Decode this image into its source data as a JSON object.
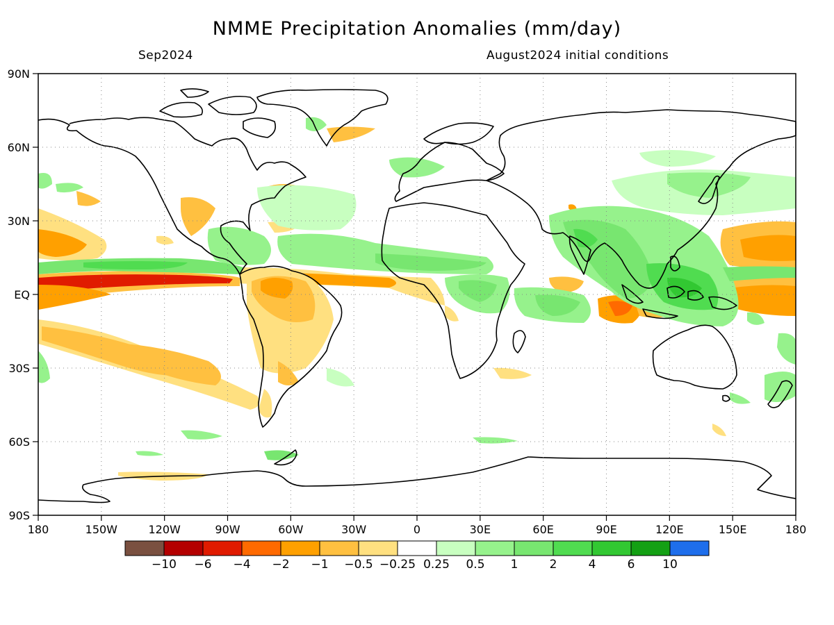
{
  "title": "NMME Precipitation Anomalies (mm/day)",
  "subtitle_left": "Sep2024",
  "subtitle_right": "August2024 initial conditions",
  "lat_labels": [
    "90N",
    "60N",
    "30N",
    "EQ",
    "30S",
    "60S",
    "90S"
  ],
  "lon_labels": [
    "180",
    "150W",
    "120W",
    "90W",
    "60W",
    "30W",
    "0",
    "30E",
    "60E",
    "90E",
    "120E",
    "150E",
    "180"
  ],
  "colorbar": {
    "colors": [
      "#7a5040",
      "#b40000",
      "#e01b00",
      "#ff6a00",
      "#ffa000",
      "#ffc040",
      "#ffe080",
      "#ffffff",
      "#c8ffc0",
      "#96f28c",
      "#78e670",
      "#50dc50",
      "#32c832",
      "#14a014",
      "#1e6eeb"
    ],
    "labels": [
      "−10",
      "−6",
      "−4",
      "−2",
      "−1",
      "−0.5",
      "−0.25",
      "0.25",
      "0.5",
      "1",
      "2",
      "4",
      "6",
      "10"
    ]
  },
  "map_style": {
    "projection": "cylindrical equidistant, 180 to 180, 90S to 90N",
    "grid": "dotted, every 30 degrees",
    "coastline_color": "#000000"
  }
}
